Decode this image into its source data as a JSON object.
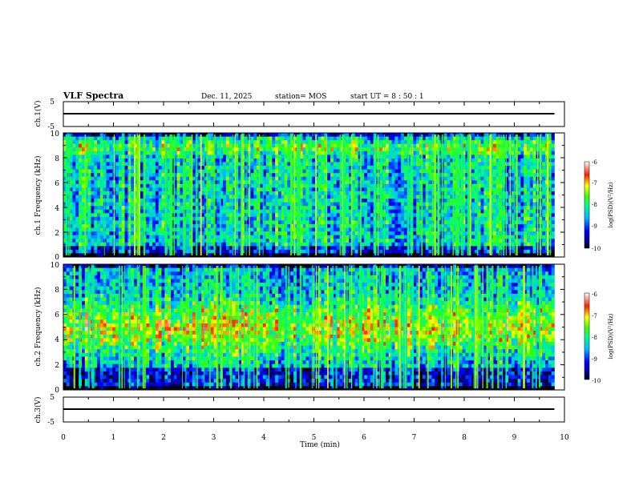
{
  "header": {
    "title": "VLF Spectra",
    "date": "Dec. 11, 2025",
    "station": "station= MOS",
    "start": "start  UT  =   8  : 50 : 1"
  },
  "chart_data": [
    {
      "type": "line",
      "name": "ch1-voltage",
      "ylabel": "ch.1(V)",
      "ylim": [
        -5,
        5
      ],
      "yticks": [
        "5",
        "-5"
      ],
      "xlim": [
        0,
        10
      ],
      "series": [
        {
          "name": "ch.1",
          "x": [
            0,
            9.8
          ],
          "values": [
            0,
            0
          ]
        }
      ]
    },
    {
      "type": "heatmap",
      "name": "ch1-spectrogram",
      "ylabel": "ch.1  Frequency  (kHz)",
      "ylim": [
        0,
        10
      ],
      "yticks": [
        "0",
        "2",
        "4",
        "6",
        "8",
        "10"
      ],
      "xlim": [
        0,
        9.8
      ],
      "colorbar": {
        "label": "log(PSD)(V²/Hz)",
        "range": [
          -10,
          -6
        ],
        "ticks": [
          "-6",
          "-7",
          "-8",
          "-9",
          "-10"
        ]
      }
    },
    {
      "type": "heatmap",
      "name": "ch2-spectrogram",
      "ylabel": "ch.2  Frequency  (kHz)",
      "ylim": [
        0,
        10
      ],
      "yticks": [
        "0",
        "2",
        "4",
        "6",
        "8",
        "10"
      ],
      "xlim": [
        0,
        9.8
      ],
      "colorbar": {
        "label": "log(PSD)(V²/Hz)",
        "range": [
          -10,
          -6
        ],
        "ticks": [
          "-6",
          "-7",
          "-8",
          "-9",
          "-10"
        ]
      }
    },
    {
      "type": "line",
      "name": "ch3-voltage",
      "ylabel": "ch.3(V)",
      "ylim": [
        -5,
        5
      ],
      "yticks": [
        "5",
        "-5"
      ],
      "xlim": [
        0,
        10
      ],
      "xlabel": "Time  (min)",
      "xticks": [
        "0",
        "1",
        "2",
        "3",
        "4",
        "5",
        "6",
        "7",
        "8",
        "9",
        "10"
      ],
      "series": [
        {
          "name": "ch.3",
          "x": [
            0,
            9.8
          ],
          "values": [
            0,
            0
          ]
        }
      ]
    }
  ]
}
